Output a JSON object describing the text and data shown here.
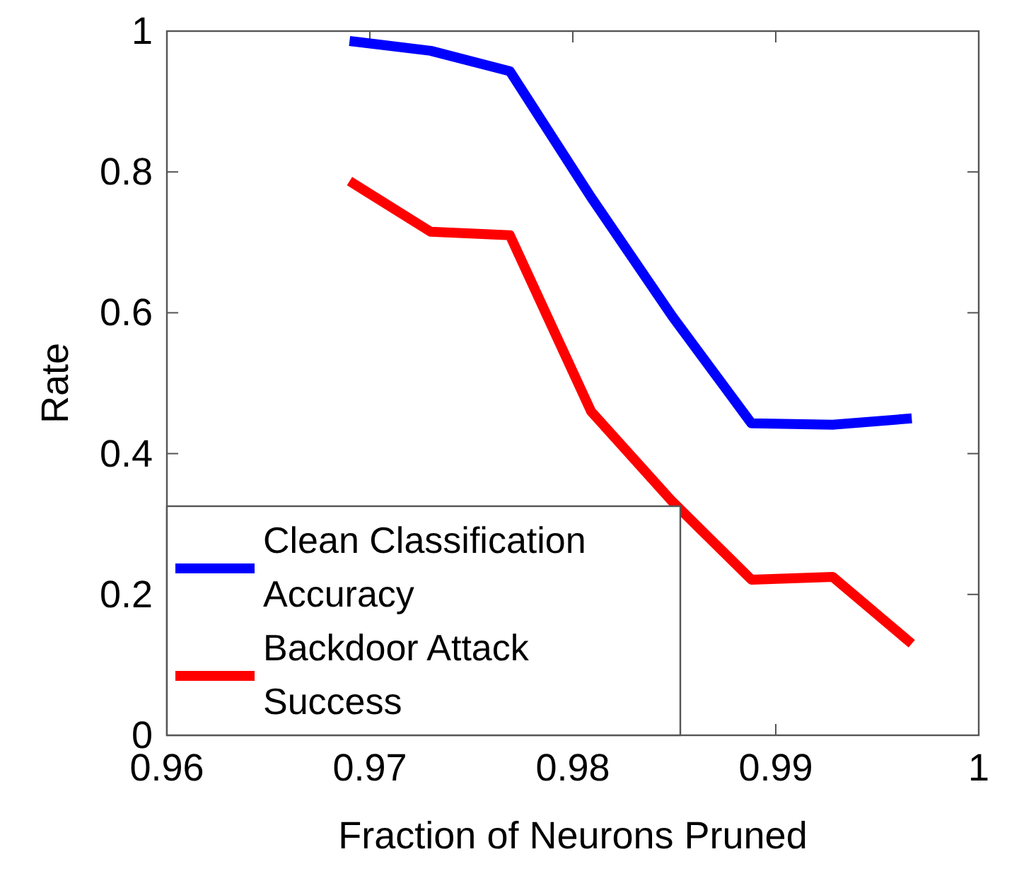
{
  "chart_data": {
    "type": "line",
    "xlabel": "Fraction of Neurons Pruned",
    "ylabel": "Rate",
    "x": [
      0.969,
      0.973,
      0.9769,
      0.9809,
      0.9849,
      0.9888,
      0.9928,
      0.9967
    ],
    "xlim": [
      0.96,
      1
    ],
    "xticks": [
      0.96,
      0.97,
      0.98,
      0.99,
      1
    ],
    "ylim": [
      0,
      1
    ],
    "yticks": [
      0,
      0.2,
      0.4,
      0.6,
      0.8,
      1
    ],
    "series": [
      {
        "name": "Clean Classification Accuracy",
        "color": "#0000ff",
        "values": [
          0.986,
          0.972,
          0.943,
          0.764,
          0.595,
          0.443,
          0.441,
          0.45
        ]
      },
      {
        "name": "Backdoor Attack Success",
        "color": "#ff0000",
        "values": [
          0.787,
          0.715,
          0.71,
          0.46,
          0.332,
          0.221,
          0.225,
          0.13
        ]
      }
    ],
    "legend": "bottom left",
    "grid": false,
    "line_style": "solid",
    "marker": "none"
  }
}
